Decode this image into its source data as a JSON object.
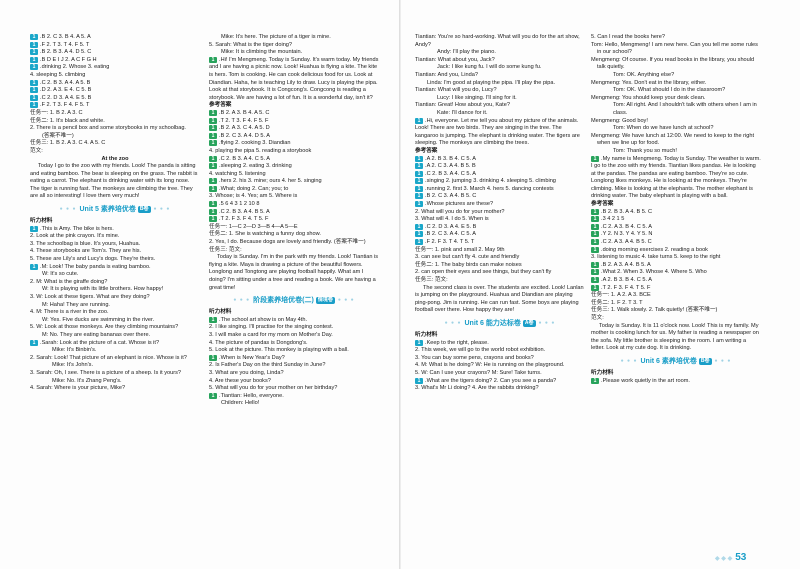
{
  "page_number": "53",
  "col1": [
    {
      "n": "1",
      "t": "B  2. C  3. B  4. A  5. A"
    },
    {
      "n": "1",
      "t": "F  2. T  3. T  4. F  5. T"
    },
    {
      "n": "1",
      "t": "B  2. B  3. A  4. D  5. C"
    },
    {
      "n": "1",
      "t": "B  D  E  I  J  2. A  C  F  G  H"
    },
    {
      "n": "1",
      "t": "drinking  2. Whose  3. eating"
    },
    {
      "t": "4. sleeping  5. climbing"
    },
    {
      "n": "1",
      "t": "C  2. B  3. A  4. A  5. B"
    },
    {
      "n": "1",
      "t": "D  2. A  3. E  4. C  5. B"
    },
    {
      "n": "1",
      "t": "C  2. D  3. A  4. E  5. B"
    },
    {
      "n": "1",
      "t": "F  2. T  3. F  4. F  5. T"
    },
    {
      "t": "任务一: 1. B  2. A  3. C"
    },
    {
      "t": "任务二: 1. It's black and white."
    },
    {
      "t": "2. There is a pencil box and some storybooks in my schoolbag."
    },
    {
      "t": "(答案不唯一)",
      "c": "ind"
    },
    {
      "t": "任务三: 1. B  2. A  3. C  4. A  5. C"
    },
    {
      "t": "范文:"
    },
    {
      "t": "At the zoo",
      "c": "ctr"
    },
    {
      "t": "Today I go to the zoo with my friends. Look! The panda is sitting and eating bamboo. The bear is sleeping on the grass. The rabbit is eating a carrot. The elephant is drinking water with its long nose. The tiger is running fast. The monkeys are climbing the tree. They are all so interesting! I love them very much!",
      "c": "par"
    },
    {
      "unit": "Unit 5  素养培优卷",
      "badge": "B卷"
    },
    {
      "t": "听力材料",
      "c": "label-h"
    },
    {
      "n": "1",
      "t": "This is Amy. The bike is hers."
    },
    {
      "t": "2. Look at the pink crayon. It's mine."
    },
    {
      "t": "3. The schoolbag is blue. It's yours, Huahua."
    },
    {
      "t": "4. These storybooks are Tom's. They are his."
    },
    {
      "t": "5. These are Lily's and Lucy's dogs. They're theirs."
    },
    {
      "n": "1",
      "t": "M: Look! The baby panda is eating bamboo."
    },
    {
      "t": "W: It's so cute.",
      "c": "ind"
    },
    {
      "t": "2. M: What is the giraffe doing?"
    },
    {
      "t": "W: It is playing with its little brothers. How happy!",
      "c": "ind"
    },
    {
      "t": "3. W: Look at these tigers. What are they doing?"
    },
    {
      "t": "M: Haha! They are running.",
      "c": "ind"
    },
    {
      "t": "4. M: There is a river in the zoo."
    },
    {
      "t": "W: Yes. Five ducks are swimming in the river.",
      "c": "ind"
    },
    {
      "t": "5. W: Look at those monkeys. Are they climbing mountains?"
    },
    {
      "t": "M: No. They are eating bananas over there.",
      "c": "ind"
    },
    {
      "n": "1",
      "t": "Sarah: Look at the picture of a cat. Whose is it?"
    },
    {
      "t": "Mike: It's Binbin's.",
      "c": "ind2"
    },
    {
      "t": "2. Sarah: Look! That picture of an elephant is nice. Whose is it?"
    },
    {
      "t": "Mike: It's John's.",
      "c": "ind2"
    },
    {
      "t": "3. Sarah: Oh, I see. There is a picture of a sheep. Is it yours?"
    },
    {
      "t": "Mike: No. It's Zhang Peng's.",
      "c": "ind2"
    },
    {
      "t": "4. Sarah: Where is your picture, Mike?"
    }
  ],
  "col2": [
    {
      "t": "Mike: It's here. The picture of a tiger is mine.",
      "c": "ind"
    },
    {
      "t": "5. Sarah: What is the tiger doing?"
    },
    {
      "t": "Mike: It is climbing the mountain.",
      "c": "ind"
    },
    {
      "n": "1",
      "t": "Hi! I'm Mengmeng. Today is Sunday. It's warm today. My friends and I are having a picnic now. Look! Huahua is flying a kite. The kite is hers. Tom is cooking. He can cook delicious food for us. Look at Diandian. Haha, he is teaching Lily to draw. Lucy is playing the pipa. Look at that storybook. It is Congcong's. Congcong is reading a storybook. We are having a lot of fun. It is a wonderful day, isn't it?"
    },
    {
      "t": "参考答案",
      "c": "label-h"
    },
    {
      "n": "1",
      "t": "B  2. A  3. B  4. A  5. C"
    },
    {
      "n": "1",
      "t": "T  2. T  3. F  4. F  5. F"
    },
    {
      "n": "1",
      "t": "B  2. A  3. C  4. A  5. D"
    },
    {
      "n": "1",
      "t": "B  2. C  3. A  4. D  5. A"
    },
    {
      "n": "1",
      "t": "flying  2. cooking  3. Diandian"
    },
    {
      "t": "4. playing the pipa  5. reading a storybook"
    },
    {
      "n": "1",
      "t": "C  2. B  3. A  4. C  5. A"
    },
    {
      "n": "1",
      "t": "sleeping  2. eating  3. drinking"
    },
    {
      "t": "4. watching  5. listening"
    },
    {
      "n": "1",
      "t": "hers  2. his  3. mine; ours  4. her  5. singing"
    },
    {
      "n": "1",
      "t": "What; doing  2. Can; you; to"
    },
    {
      "t": "3. Whose; is  4. Yes; am  5. Where is"
    },
    {
      "n": "1",
      "t": "5  6  4  3  1  2  10  8"
    },
    {
      "n": "1",
      "t": "C  2. B  3. A  4. B  5. A"
    },
    {
      "n": "1",
      "t": "T  2. F  3. F  4. T  5. F"
    },
    {
      "t": "任务一: 1—C  2—D  3—B  4—A  5—E"
    },
    {
      "t": "任务二: 1. She is watching a funny dog show."
    },
    {
      "t": "2. Yes, I do. Because dogs are lovely and friendly. (答案不唯一)"
    },
    {
      "t": "任务三: 范文:"
    },
    {
      "t": "Today is Sunday. I'm in the park with my friends. Look! Tiantian is flying a kite. Maya is drawing a picture of the beautiful flowers. Longlong and Tongtong are playing football happily. What am I doing? I'm sitting under a tree and reading a book. We are having a great time!",
      "c": "par"
    },
    {
      "unit": "阶段素养培优卷(二)",
      "badge": "情境卷"
    },
    {
      "t": "听力材料",
      "c": "label-h"
    },
    {
      "n": "1",
      "t": "The school art show is on May 4th."
    },
    {
      "t": "2. I like singing. I'll practise for the singing contest."
    },
    {
      "t": "3. I will make a card for my mom on Mother's Day."
    },
    {
      "t": "4. The picture of pandas is Dongdong's."
    },
    {
      "t": "5. Look at the picture. This monkey is playing with a ball."
    },
    {
      "n": "1",
      "t": "When is New Year's Day?"
    },
    {
      "t": "2. Is Father's Day on the third Sunday in June?"
    },
    {
      "t": "3. What are you doing, Linda?"
    },
    {
      "t": "4. Are these your books?"
    },
    {
      "t": "5. What will you do for your mother on her birthday?"
    },
    {
      "n": "1",
      "t": "Tiantian: Hello, everyone."
    },
    {
      "t": "Children: Hello!",
      "c": "ind"
    }
  ],
  "col3": [
    {
      "t": "Tiantian: You're so hard-working. What will you do for the art show, Andy?"
    },
    {
      "t": "Andy: I'll play the piano.",
      "c": "ind2"
    },
    {
      "t": "Tiantian: What about you, Jack?"
    },
    {
      "t": "Jack: I like kung fu. I will do some kung fu.",
      "c": "ind2"
    },
    {
      "t": "Tiantian: And you, Linda?"
    },
    {
      "t": "Linda: I'm good at playing the pipa. I'll play the pipa.",
      "c": "ind"
    },
    {
      "t": "Tiantian: What will you do, Lucy?"
    },
    {
      "t": "Lucy: I like singing. I'll sing for it.",
      "c": "ind2"
    },
    {
      "t": "Tiantian: Great! How about you, Kate?"
    },
    {
      "t": "Kate: I'll dance for it.",
      "c": "ind2"
    },
    {
      "n": "1",
      "t": "Hi, everyone. Let me tell you about my picture of the animals. Look! There are two birds. They are singing in the tree. The kangaroo is jumping. The elephant is drinking water. The tigers are sleeping. The monkeys are climbing the trees."
    },
    {
      "t": "参考答案",
      "c": "label-h"
    },
    {
      "n": "1",
      "t": "A  2. B  3. B  4. C  5. A"
    },
    {
      "n": "1",
      "t": "A  2. C  3. A  4. B  5. B"
    },
    {
      "n": "1",
      "t": "C  2. B  3. A  4. C  5. A"
    },
    {
      "n": "1",
      "t": "singing  2. jumping  3. drinking  4. sleeping  5. climbing"
    },
    {
      "n": "1",
      "t": "running  2. first  3. March  4. hers  5. dancing contests"
    },
    {
      "n": "1",
      "t": "B  2. C  3. A  4. B  5. C"
    },
    {
      "n": "1",
      "t": "Whose pictures are these?"
    },
    {
      "t": "2. What will you do for your mother?"
    },
    {
      "t": "3. What will  4. I do  5. When is"
    },
    {
      "n": "1",
      "t": "C  2. D  3. A  4. E  5. B"
    },
    {
      "n": "1",
      "t": "B  2. C  3. A  4. C  5. A"
    },
    {
      "n": "1",
      "t": "F  2. F  3. T  4. T  5. T"
    },
    {
      "t": "任务一: 1. pink and small  2. May 9th"
    },
    {
      "t": "3. can see but can't fly  4. cute and friendly"
    },
    {
      "t": "任务二: 1. The baby birds can make noises"
    },
    {
      "t": "2. can open their eyes and see things, but they can't fly"
    },
    {
      "t": "任务三: 范文:"
    },
    {
      "t": "The second class is over. The students are excited. Look! Lanlan is jumping on the playground. Huahua and Diandian are playing ping-pong. Jim is running. He can run fast. Some boys are playing football over there. How happy they are!",
      "c": "par"
    },
    {
      "unit": "Unit 6  能力达标卷",
      "badge": "A卷"
    },
    {
      "t": "听力材料",
      "c": "label-h"
    },
    {
      "n": "1",
      "t": "Keep to the right, please."
    },
    {
      "t": "2. This week, we will go to the world robot exhibition."
    },
    {
      "t": "3. You can buy some pens, crayons and books?"
    },
    {
      "t": "4. M: What is he doing?   W: He is running on the playground."
    },
    {
      "t": "5. W: Can I use your crayons?   M: Sure! Take turns."
    },
    {
      "n": "1",
      "t": "What are the tigers doing?  2. Can you see a panda?"
    },
    {
      "t": "3. What's Mr Li doing?  4. Are the rabbits drinking?"
    }
  ],
  "col4": [
    {
      "t": "5. Can I read the books here?"
    },
    {
      "t": "Tom: Hello, Mengmeng! I am new here. Can you tell me some rules in our school?",
      "c": "spk"
    },
    {
      "t": "Mengmeng: Of course. If you read books in the library, you should talk quietly.",
      "c": "spk"
    },
    {
      "t": "Tom: OK. Anything else?",
      "c": "ind2"
    },
    {
      "t": "Mengmeng: Yes. Don't eat in the library, either.",
      "c": "spk"
    },
    {
      "t": "Tom: OK. What should I do in the classroom?",
      "c": "ind2"
    },
    {
      "t": "Mengmeng: You should keep your desk clean.",
      "c": "spk"
    },
    {
      "t": "Tom: All right. And I shouldn't talk with others when I am in class.",
      "c": "ind2"
    },
    {
      "t": "Mengmeng: Good boy!",
      "c": "spk"
    },
    {
      "t": "Tom: When do we have lunch at school?",
      "c": "ind2"
    },
    {
      "t": "Mengmeng: We have lunch at 12:00. We need to keep to the right when we line up for food.",
      "c": "spk"
    },
    {
      "t": "Tom: Thank you so much!",
      "c": "ind2"
    },
    {
      "n": "1",
      "t": "My name is Mengmeng. Today is Sunday. The weather is warm. I go to the zoo with my friends. Tiantian likes pandas. He is looking at the pandas. The pandas are eating bamboo. They're so cute. Longlong likes monkeys. He is looking at the monkeys. They're climbing. Mike is looking at the elephants. The mother elephant is drinking water. The baby elephant is playing with a ball."
    },
    {
      "t": "参考答案",
      "c": "label-h"
    },
    {
      "n": "1",
      "t": "B  2. B  3. A  4. B  5. C"
    },
    {
      "n": "1",
      "t": "3  4  2  1  5"
    },
    {
      "n": "1",
      "t": "C  2. A  3. B  4. C  5. A"
    },
    {
      "n": "1",
      "t": "Y  2. N  3. Y  4. Y  5. N"
    },
    {
      "n": "1",
      "t": "C  2. A  3. A  4. B  5. C"
    },
    {
      "n": "1",
      "t": "doing morning exercises  2. reading a book"
    },
    {
      "t": "3. listening to music  4. take turns  5. keep to the right"
    },
    {
      "n": "1",
      "t": "B  2. A  3. A  4. B  5. A"
    },
    {
      "n": "1",
      "t": "What  2. When  3. Whose  4. Where  5. Who"
    },
    {
      "n": "1",
      "t": "A  2. B  3. B  4. C  5. A"
    },
    {
      "n": "1",
      "t": "T  2. F  3. F  4. T  5. F"
    },
    {
      "t": "任务一: 1. A  2. A  3. BCE"
    },
    {
      "t": "任务二: 1. F  2. T  3. T"
    },
    {
      "t": "任务三: 1. Walk slowly.  2. Talk quietly! (答案不唯一)"
    },
    {
      "t": "范文:"
    },
    {
      "t": "Today is Sunday. It is 11 o'clock now. Look! This is my family. My mother is cooking lunch for us. My father is reading a newspaper on the sofa. My little brother is sleeping in the room. I am writing a letter. Look at my cute dog. It is drinking.",
      "c": "par"
    },
    {
      "unit": "Unit 6  素养培优卷",
      "badge": "B卷"
    },
    {
      "t": "听力材料",
      "c": "label-h"
    },
    {
      "n": "1",
      "t": "Please work quietly in the art room."
    }
  ]
}
